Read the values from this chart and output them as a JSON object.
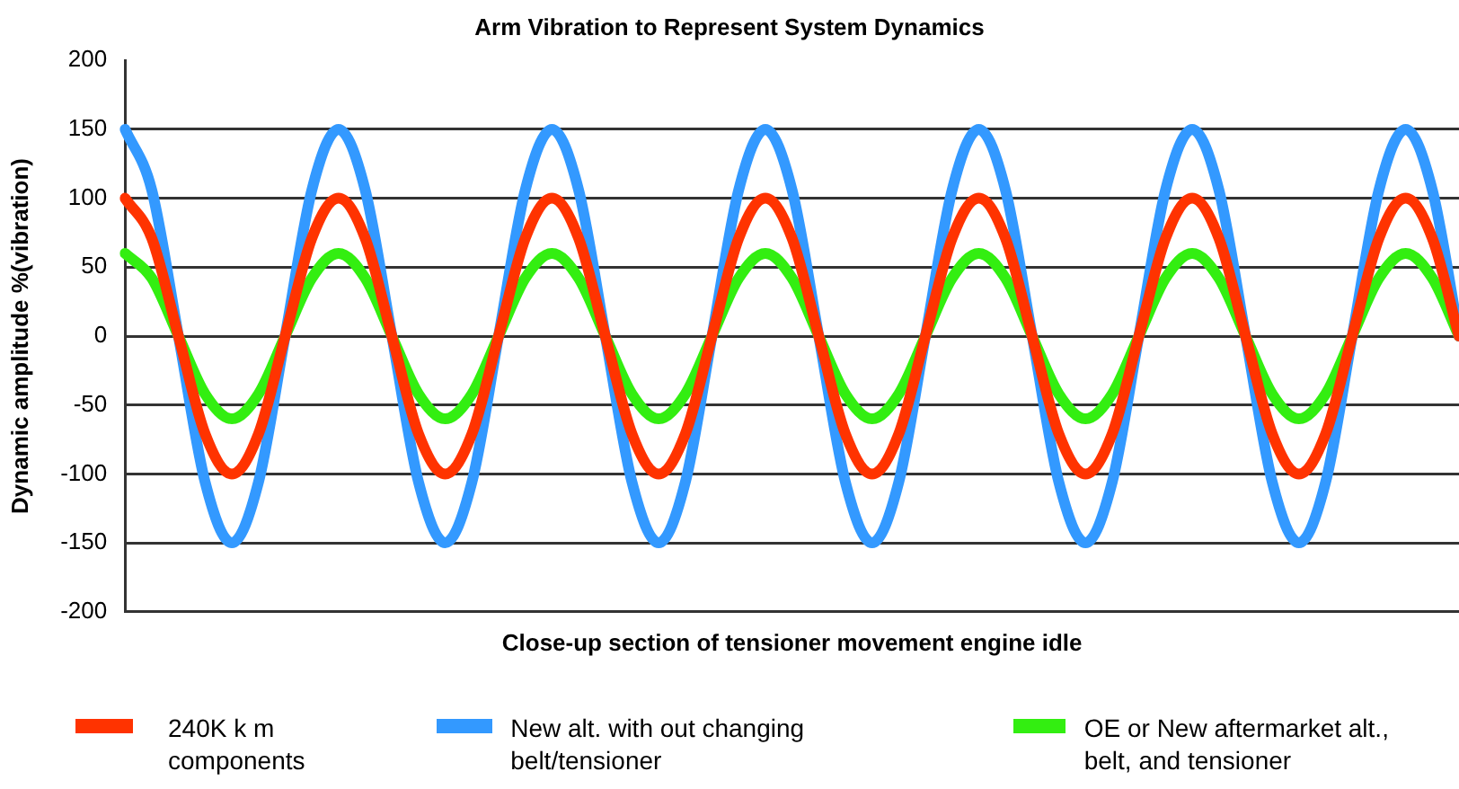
{
  "chart_data": {
    "type": "line",
    "title": "Arm Vibration to Represent System Dynamics",
    "xlabel": "Close-up section of tensioner movement engine idle",
    "ylabel": "Dynamic amplitude %(vibration)",
    "categories": [
      null,
      null,
      null,
      null,
      null,
      null,
      null,
      null,
      null,
      null,
      null,
      null,
      null,
      null,
      null,
      null,
      null,
      null,
      null,
      null,
      null,
      null,
      null,
      null,
      null,
      null,
      null,
      null,
      null,
      null,
      null,
      null,
      null,
      null,
      null,
      null,
      null,
      null,
      null,
      null,
      null,
      null,
      null,
      null,
      null,
      null,
      null,
      null,
      null,
      null,
      null
    ],
    "series": [
      {
        "name": "240K k m components",
        "color": "#ff3300",
        "values": [
          100,
          71,
          0,
          -71,
          -100,
          -71,
          0,
          71,
          100,
          71,
          0,
          -71,
          -100,
          -71,
          0,
          71,
          100,
          71,
          0,
          -71,
          -100,
          -71,
          0,
          71,
          100,
          71,
          0,
          -71,
          -100,
          -71,
          0,
          71,
          100,
          71,
          0,
          -71,
          -100,
          -71,
          0,
          71,
          100,
          71,
          0,
          -71,
          -100,
          -71,
          0,
          71,
          100,
          71,
          0
        ]
      },
      {
        "name": "New alt. with out changing belt/tensioner",
        "color": "#3399ff",
        "values": [
          150,
          106,
          0,
          -106,
          -150,
          -106,
          0,
          106,
          150,
          106,
          0,
          -106,
          -150,
          -106,
          0,
          106,
          150,
          106,
          0,
          -106,
          -150,
          -106,
          0,
          106,
          150,
          106,
          0,
          -106,
          -150,
          -106,
          0,
          106,
          150,
          106,
          0,
          -106,
          -150,
          -106,
          0,
          106,
          150,
          106,
          0,
          -106,
          -150,
          -106,
          0,
          106,
          150,
          106,
          0
        ]
      },
      {
        "name": "OE or New aftermarket alt., belt, and tensioner",
        "color": "#33ee11",
        "values": [
          60,
          42,
          0,
          -42,
          -60,
          -42,
          0,
          42,
          60,
          42,
          0,
          -42,
          -60,
          -42,
          0,
          42,
          60,
          42,
          0,
          -42,
          -60,
          -42,
          0,
          42,
          60,
          42,
          0,
          -42,
          -60,
          -42,
          0,
          42,
          60,
          42,
          0,
          -42,
          -60,
          -42,
          0,
          42,
          60,
          42,
          0,
          -42,
          -60,
          -42,
          0,
          42,
          60,
          42,
          0
        ]
      }
    ],
    "ylim": [
      -200,
      200
    ],
    "yticks": [
      -200,
      -150,
      -100,
      -50,
      0,
      50,
      100,
      150,
      200
    ],
    "grid": "y",
    "legend": "bottom",
    "marker": "none",
    "line_style": "solid",
    "tick_labels": "y"
  }
}
